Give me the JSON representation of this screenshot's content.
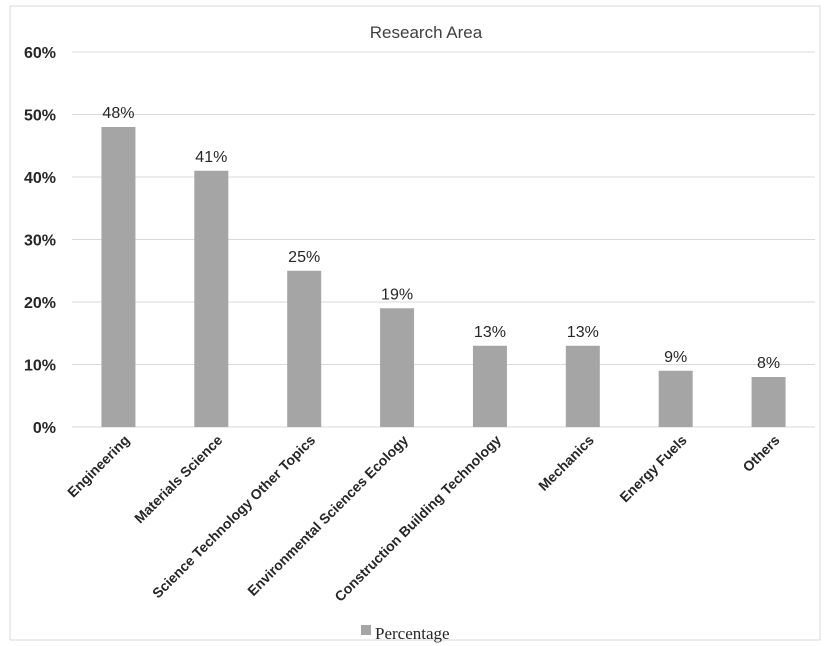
{
  "chart_data": {
    "type": "bar",
    "title": "Research Area",
    "xlabel": "",
    "ylabel": "",
    "categories": [
      "Engineering",
      "Materials Science",
      "Science Technology Other Topics",
      "Environmental Sciences Ecology",
      "Construction Building Technology",
      "Mechanics",
      "Energy Fuels",
      "Others"
    ],
    "series": [
      {
        "name": "Percentage",
        "values": [
          48,
          41,
          25,
          19,
          13,
          13,
          9,
          8
        ],
        "data_labels": [
          "48%",
          "41%",
          "25%",
          "19%",
          "13%",
          "13%",
          "9%",
          "8%"
        ],
        "color": "#a5a5a5"
      }
    ],
    "ylim": [
      0,
      60
    ],
    "yticks": [
      0,
      10,
      20,
      30,
      40,
      50,
      60
    ],
    "ytick_labels": [
      "0%",
      "10%",
      "20%",
      "30%",
      "40%",
      "50%",
      "60%"
    ],
    "grid": true,
    "gridline_color": "#d9d9d9",
    "legend_position": "bottom"
  }
}
